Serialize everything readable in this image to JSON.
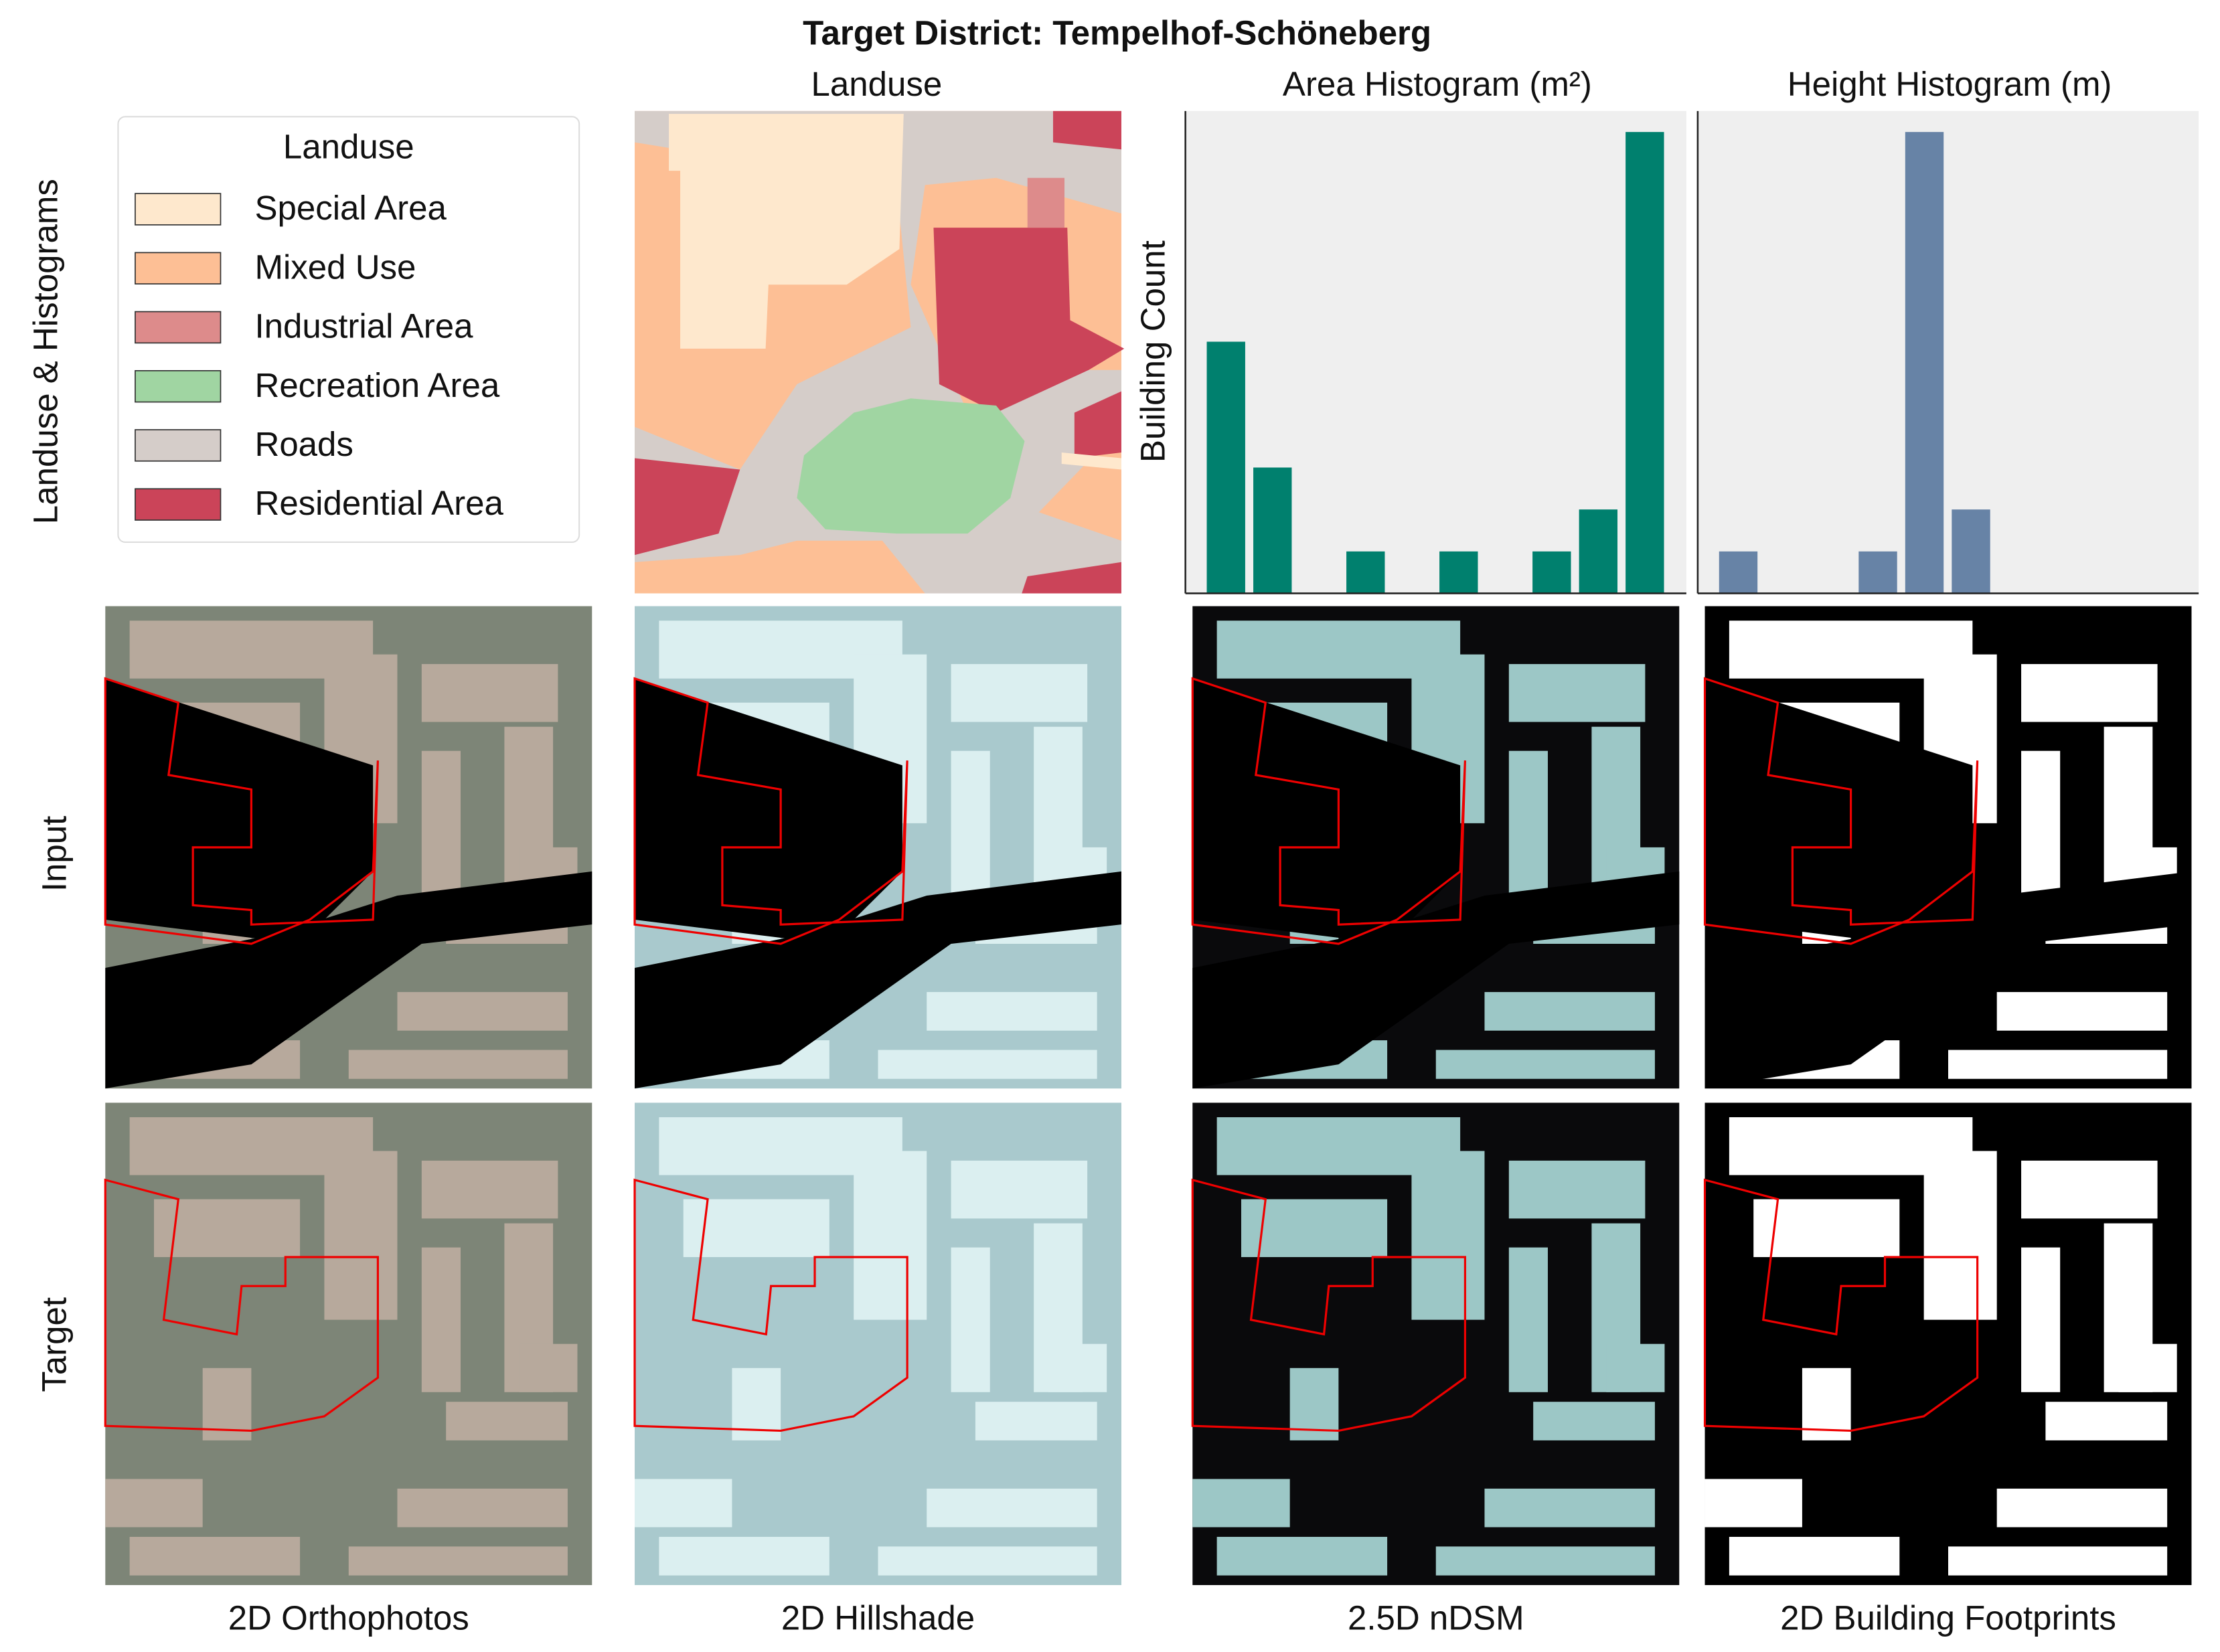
{
  "title": "Target District: Tempelhof-Schöneberg",
  "landuse_panel": {
    "title": "Landuse"
  },
  "legend": {
    "title": "Landuse",
    "items": [
      {
        "label": "Special Area",
        "color": "#fee8cd"
      },
      {
        "label": "Mixed Use",
        "color": "#fdbf95"
      },
      {
        "label": "Industrial Area",
        "color": "#dd8b8b"
      },
      {
        "label": "Recreation Area",
        "color": "#a0d5a2"
      },
      {
        "label": "Roads",
        "color": "#d5cdc9"
      },
      {
        "label": "Residential Area",
        "color": "#cb4459"
      }
    ]
  },
  "rows": [
    "Landuse & Histograms",
    "Input",
    "Target"
  ],
  "columns": [
    "2D Orthophotos",
    "2D Hillshade",
    "2.5D nDSM",
    "2D Building Footprints"
  ],
  "chart_data": [
    {
      "type": "bar",
      "title": "Area Histogram (m²)",
      "ylabel": "Building Count",
      "categories": [
        null,
        null,
        null,
        null,
        null,
        null,
        null,
        null,
        null,
        null
      ],
      "values": [
        6,
        3,
        0,
        1,
        0,
        1,
        0,
        1,
        2,
        11
      ],
      "color": "#00806e",
      "ylim": [
        0,
        11.5
      ]
    },
    {
      "type": "bar",
      "title": "Height Histogram (m)",
      "categories": [
        null,
        null,
        null,
        null,
        null,
        null
      ],
      "values": [
        1,
        0,
        0,
        1,
        11,
        2
      ],
      "color": "#6783a6",
      "ylim": [
        0,
        11.5
      ]
    }
  ]
}
